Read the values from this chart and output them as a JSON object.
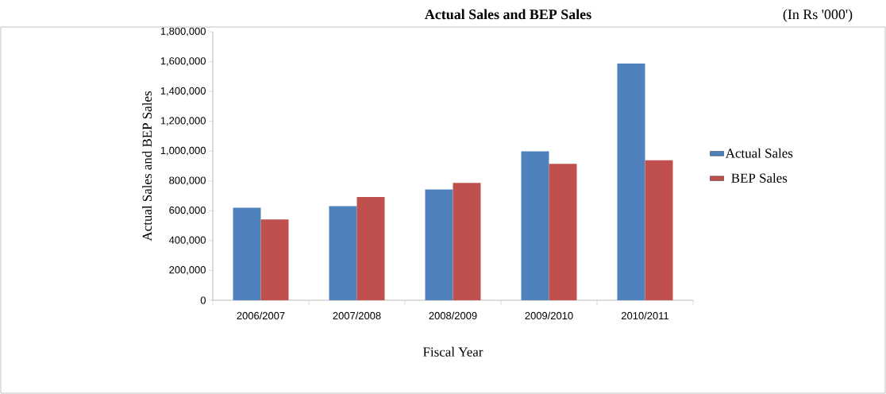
{
  "chart_data": {
    "type": "bar",
    "title": "Actual Sales and BEP Sales",
    "subtitle": "(In Rs '000')",
    "xlabel": "Fiscal Year",
    "ylabel": "Actual Sales and BEP Sales",
    "categories": [
      "2006/2007",
      "2007/2008",
      "2008/2009",
      "2009/2010",
      "2010/2011"
    ],
    "series": [
      {
        "name": "Actual Sales",
        "color": "#4f81bd",
        "values": [
          620000,
          631000,
          743000,
          998000,
          1587000
        ]
      },
      {
        "name": "BEP Sales",
        "color": "#c0504d",
        "values": [
          542000,
          692000,
          787000,
          914000,
          939000
        ]
      }
    ],
    "ylim": [
      0,
      1800000
    ],
    "yticks": [
      {
        "value": 0,
        "label": "0"
      },
      {
        "value": 200000,
        "label": "200,000"
      },
      {
        "value": 400000,
        "label": "400,000"
      },
      {
        "value": 600000,
        "label": "600,000"
      },
      {
        "value": 800000,
        "label": "800,000"
      },
      {
        "value": 1000000,
        "label": "1,000,000"
      },
      {
        "value": 1200000,
        "label": "1,200,000"
      },
      {
        "value": 1400000,
        "label": "1,400,000"
      },
      {
        "value": 1600000,
        "label": "1,600,000"
      },
      {
        "value": 1800000,
        "label": "1,800,000"
      }
    ],
    "legend": "right"
  }
}
